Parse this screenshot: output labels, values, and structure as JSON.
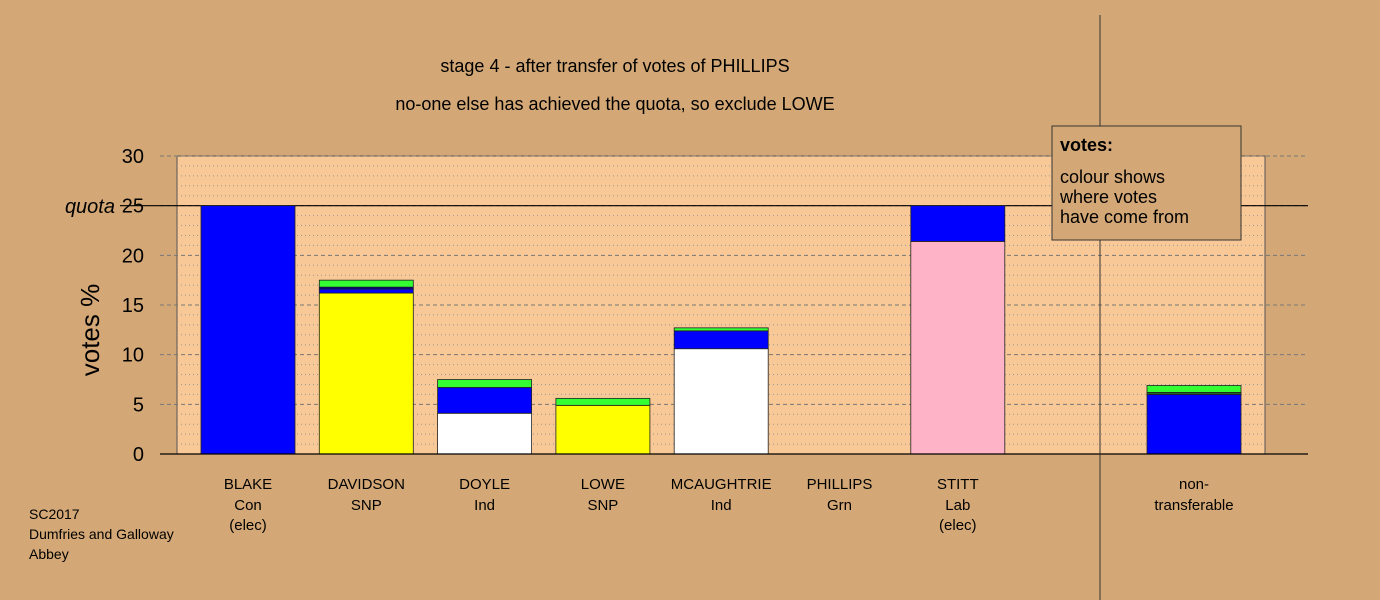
{
  "chart_data": {
    "type": "bar",
    "stacked": true,
    "title": "stage 4 - after transfer of votes of PHILLIPS",
    "subtitle": "no-one else has achieved the quota, so exclude LOWE",
    "ylabel": "votes %",
    "ylim": [
      0,
      30
    ],
    "yticks": [
      "0",
      "5",
      "10",
      "15",
      "20",
      "25",
      "30"
    ],
    "quota": {
      "label": "quota",
      "value": 25
    },
    "grid": true,
    "candidates": [
      {
        "name": "BLAKE",
        "party": "Con",
        "status": "(elec)",
        "segments": [
          {
            "color": "#0000ff",
            "value": 25
          }
        ]
      },
      {
        "name": "DAVIDSON",
        "party": "SNP",
        "status": "",
        "segments": [
          {
            "color": "#ffff00",
            "value": 16.2
          },
          {
            "color": "#0000ff",
            "value": 0.4
          },
          {
            "color": "#00008b",
            "value": 0.2
          },
          {
            "color": "#33ff33",
            "value": 0.7
          }
        ]
      },
      {
        "name": "DOYLE",
        "party": "Ind",
        "status": "",
        "segments": [
          {
            "color": "#ffffff",
            "value": 4.1
          },
          {
            "color": "#0000ff",
            "value": 2.6
          },
          {
            "color": "#33ff33",
            "value": 0.8
          }
        ]
      },
      {
        "name": "LOWE",
        "party": "SNP",
        "status": "",
        "segments": [
          {
            "color": "#ffff00",
            "value": 4.9
          },
          {
            "color": "#33ff33",
            "value": 0.7
          }
        ]
      },
      {
        "name": "MCAUGHTRIE",
        "party": "Ind",
        "status": "",
        "segments": [
          {
            "color": "#ffffff",
            "value": 10.6
          },
          {
            "color": "#0000ff",
            "value": 1.8
          },
          {
            "color": "#33ff33",
            "value": 0.3
          }
        ]
      },
      {
        "name": "PHILLIPS",
        "party": "Grn",
        "status": "",
        "segments": []
      },
      {
        "name": "STITT",
        "party": "Lab",
        "status": "(elec)",
        "segments": [
          {
            "color": "#ffb3c6",
            "value": 21.4
          },
          {
            "color": "#0000ff",
            "value": 3.6
          }
        ]
      }
    ],
    "nontransferable": {
      "label_line1": "non-",
      "label_line2": "transferable",
      "segments": [
        {
          "color": "#0000ff",
          "value": 6.0
        },
        {
          "color": "#1a6b1a",
          "value": 0.2
        },
        {
          "color": "#33ff33",
          "value": 0.7
        }
      ]
    },
    "legend": {
      "position": "top-right",
      "title": "votes:",
      "lines": [
        "colour shows",
        "where votes",
        "have come from"
      ]
    },
    "footnote": [
      "SC2017",
      "Dumfries and Galloway",
      "Abbey"
    ],
    "colors": {
      "background": "#d4a876",
      "plot_background": "#f8c896"
    }
  }
}
